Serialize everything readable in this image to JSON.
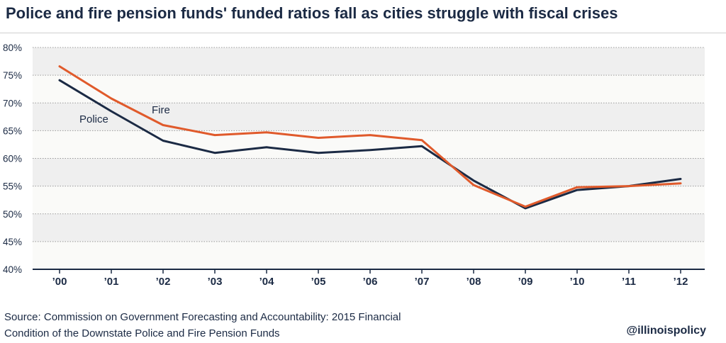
{
  "title": "Police and fire pension funds' funded ratios fall as cities struggle with fiscal crises",
  "source_line1": "Source: Commission on Government Forecasting and Accountability: 2015 Financial",
  "source_line2": "Condition of the Downstate Police and Fire Pension Funds",
  "handle": "@illinoispolicy",
  "chart_data": {
    "type": "line",
    "x": [
      "’00",
      "’01",
      "’02",
      "’03",
      "’04",
      "’05",
      "’06",
      "’07",
      "’08",
      "’09",
      "’10",
      "’11",
      "’12"
    ],
    "series": [
      {
        "name": "Police",
        "color": "#1b2a44",
        "values": [
          74.1,
          68.5,
          63.2,
          61.0,
          62.0,
          61.0,
          61.5,
          62.2,
          56.0,
          51.0,
          54.3,
          55.0,
          56.3
        ]
      },
      {
        "name": "Fire",
        "color": "#e05a2b",
        "values": [
          76.6,
          70.8,
          66.0,
          64.2,
          64.7,
          63.7,
          64.2,
          63.3,
          55.2,
          51.3,
          54.8,
          55.0,
          55.5
        ]
      }
    ],
    "y_ticks": [
      "80%",
      "75%",
      "70%",
      "65%",
      "60%",
      "55%",
      "50%",
      "45%",
      "40%"
    ],
    "ylim": [
      40,
      80
    ],
    "grid": true,
    "banded_background": true
  }
}
